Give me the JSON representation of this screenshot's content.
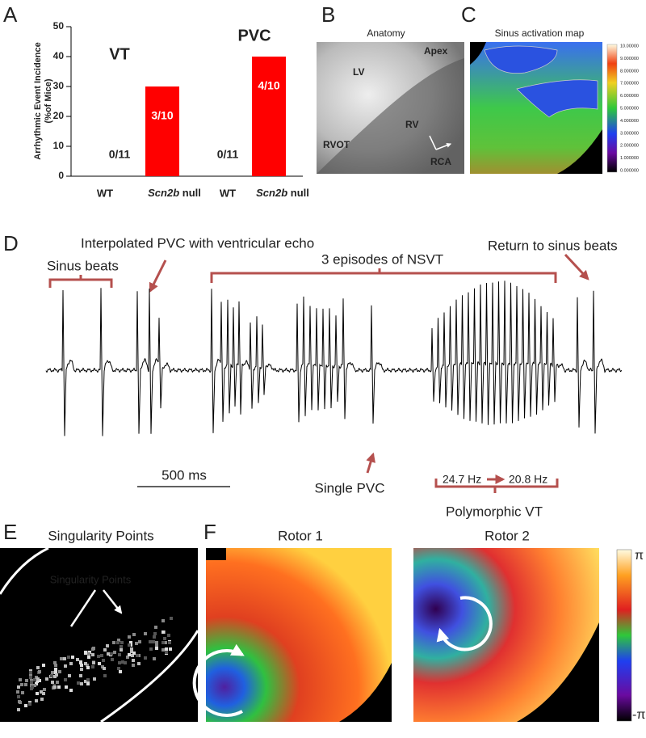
{
  "chart_data": {
    "type": "bar",
    "panel_label": "A",
    "ylabel": [
      "Arrhythmic Event Incidence",
      "(%of Mice)"
    ],
    "group_labels": [
      "VT",
      "PVC"
    ],
    "categories": [
      "WT",
      "Scn2b null",
      "WT",
      "Scn2b null"
    ],
    "values": [
      0,
      30,
      0,
      40
    ],
    "value_labels": [
      "0/11",
      "3/10",
      "0/11",
      "4/10"
    ],
    "color": "#ff0000",
    "ylim": [
      0,
      50
    ],
    "yticks": [
      0,
      10,
      20,
      30,
      40,
      50
    ]
  },
  "panels": {
    "B": {
      "label": "B",
      "title": "Anatomy",
      "annotations": [
        "LV",
        "Apex",
        "RV",
        "RVOT",
        "RCA"
      ]
    },
    "C": {
      "label": "C",
      "title": "Sinus activation map",
      "colorbar_labels": [
        "10.00000",
        "9.000000",
        "8.000000",
        "7.000000",
        "6.000000",
        "5.000000",
        "4.000000",
        "3.000000",
        "2.000000",
        "1.000000",
        "0.000000"
      ]
    },
    "D": {
      "label": "D",
      "sinus_beats": "Sinus beats",
      "interpolated_pvc": "Interpolated PVC with ventricular echo",
      "nsvt": "3 episodes of NSVT",
      "return_sinus": "Return to sinus beats",
      "scale_bar": "500 ms",
      "single_pvc": "Single PVC",
      "freq_start": "24.7 Hz",
      "freq_end": "20.8 Hz",
      "polymorphic_vt": "Polymorphic VT"
    },
    "E": {
      "label": "E",
      "title": "Singularity Points",
      "annotation": "Singularity Points"
    },
    "F": {
      "label": "F",
      "rotor_titles": [
        "Rotor 1",
        "Rotor 2"
      ],
      "colorbar_top": "π",
      "colorbar_bottom": "-π"
    }
  }
}
